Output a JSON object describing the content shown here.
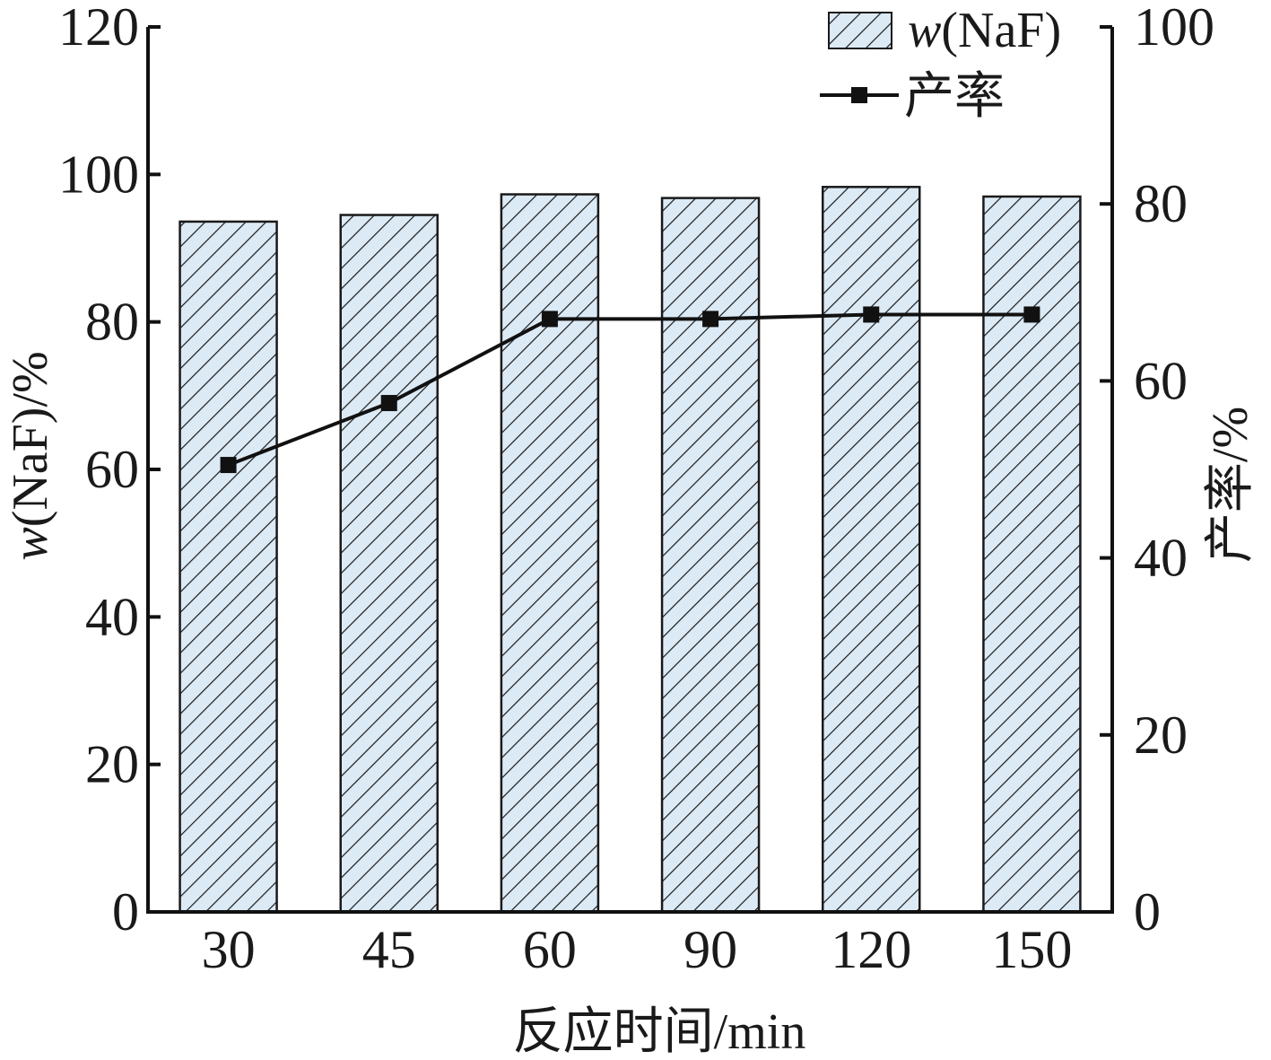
{
  "chart_data": {
    "type": "bar",
    "categories": [
      "30",
      "45",
      "60",
      "90",
      "120",
      "150"
    ],
    "series": [
      {
        "name": "w(NaF)",
        "type": "bar",
        "axis": "left",
        "values": [
          93.6,
          94.5,
          97.3,
          96.8,
          98.3,
          97.0
        ]
      },
      {
        "name": "产率",
        "type": "line",
        "axis": "right",
        "values": [
          50.5,
          57.5,
          67.0,
          67.0,
          67.5,
          67.5
        ]
      }
    ],
    "xlabel": "反应时间/min",
    "ylabel": "w(NaF)/%",
    "ylabel_right": "产率/%",
    "ylim": [
      0,
      120
    ],
    "ylim_right": [
      0,
      100
    ],
    "yticks": [
      "0",
      "20",
      "40",
      "60",
      "80",
      "100",
      "120"
    ],
    "yticks_right": [
      "0",
      "20",
      "40",
      "60",
      "80",
      "100"
    ],
    "legend": {
      "placement": "top-right",
      "bar_label_italic": "w",
      "bar_label_rest": "(NaF)",
      "line_label": "产率"
    },
    "colors": {
      "bar_fill": "#dceaf5",
      "hatch": "#1a1a1a",
      "line": "#111111",
      "axis": "#111111"
    },
    "grid": false
  }
}
